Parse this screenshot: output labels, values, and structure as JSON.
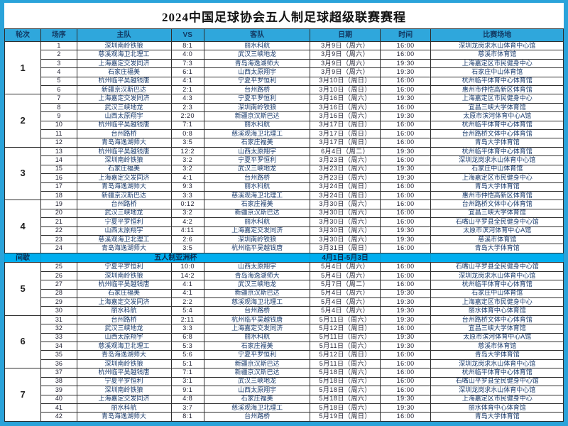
{
  "title": "2024中国足球协会五人制足球超级联赛赛程",
  "colors": {
    "frame": "#2aa3da",
    "header_bg": "#2fa7dc",
    "interlude_bg": "#00aeef",
    "grid": "#2e2e2e",
    "text": "#1e3a5f"
  },
  "table": {
    "headers": [
      "轮次",
      "场序",
      "主队",
      "VS",
      "客队",
      "日期",
      "时间",
      "比赛场地"
    ],
    "interlude": {
      "after_round": "4",
      "label": "间歇",
      "event": "五人制亚洲杯",
      "dates": "4月1日-5月3日"
    },
    "rounds": [
      {
        "round": "1",
        "matches": [
          {
            "no": "1",
            "home": "深圳南岭铁狼",
            "score": "8:1",
            "away": "丽水科航",
            "date": "3月9日（周六）",
            "time": "16:00",
            "venue": "深圳龙岗求水山体育中心馆"
          },
          {
            "no": "2",
            "home": "慈溪观海卫北理工",
            "score": "4:0",
            "away": "武汉三峡地龙",
            "date": "3月9日（周六）",
            "time": "16:00",
            "venue": "慈溪市体育馆"
          },
          {
            "no": "3",
            "home": "上海嘉定交发同济",
            "score": "7:3",
            "away": "青岛海逸湖师大",
            "date": "3月9日（周六）",
            "time": "19:30",
            "venue": "上海嘉定区市民健身中心"
          },
          {
            "no": "4",
            "home": "石家庄福美",
            "score": "6:1",
            "away": "山西太原翔宇",
            "date": "3月9日（周六）",
            "time": "19:30",
            "venue": "石家庄中山体育馆"
          },
          {
            "no": "5",
            "home": "杭州临平吴越钱唐",
            "score": "4:1",
            "away": "宁夏平罗恒利",
            "date": "3月10日（周日）",
            "time": "16:00",
            "venue": "杭州临平体育中心体育馆"
          },
          {
            "no": "6",
            "home": "新疆京汉斯巴达",
            "score": "2:1",
            "away": "台州路桥",
            "date": "3月10日（周日）",
            "time": "16:00",
            "venue": "惠州市仲恺高新区体育馆"
          }
        ]
      },
      {
        "round": "2",
        "matches": [
          {
            "no": "7",
            "home": "上海嘉定交发同济",
            "score": "4:3",
            "away": "宁夏平罗恒利",
            "date": "3月16日（周六）",
            "time": "19:30",
            "venue": "上海嘉定区市民健身中心"
          },
          {
            "no": "8",
            "home": "武汉三峡地龙",
            "score": "2:3",
            "away": "深圳南岭铁狼",
            "date": "3月16日（周六）",
            "time": "16:00",
            "venue": "宜昌三峡大学体育馆"
          },
          {
            "no": "9",
            "home": "山西太原翔宇",
            "score": "2:20",
            "away": "新疆京汉斯巴达",
            "date": "3月16日（周六）",
            "time": "19:30",
            "venue": "太原市滨河体育中心A馆"
          },
          {
            "no": "10",
            "home": "杭州临平吴越钱唐",
            "score": "7:1",
            "away": "丽水科航",
            "date": "3月17日（周日）",
            "time": "16:00",
            "venue": "杭州临平体育中心体育馆"
          },
          {
            "no": "11",
            "home": "台州路桥",
            "score": "0:8",
            "away": "慈溪观海卫北理工",
            "date": "3月17日（周日）",
            "time": "16:00",
            "venue": "台州路桥文体中心体育馆"
          },
          {
            "no": "12",
            "home": "青岛海逸湖师大",
            "score": "3:5",
            "away": "石家庄福美",
            "date": "3月17日（周日）",
            "time": "16:00",
            "venue": "青岛大学体育馆"
          }
        ]
      },
      {
        "round": "3",
        "matches": [
          {
            "no": "13",
            "home": "杭州临平吴越钱唐",
            "score": "12:2",
            "away": "山西太原翔宇",
            "date": "6月4日（周二）",
            "time": "19:30",
            "venue": "杭州临平体育中心体育馆"
          },
          {
            "no": "14",
            "home": "深圳南岭铁狼",
            "score": "3:2",
            "away": "宁夏平罗恒利",
            "date": "3月23日（周六）",
            "time": "16:00",
            "venue": "深圳龙岗求水山体育中心馆"
          },
          {
            "no": "15",
            "home": "石家庄福美",
            "score": "3:2",
            "away": "武汉三峡地龙",
            "date": "3月23日（周六）",
            "time": "19:30",
            "venue": "石家庄中山体育馆"
          },
          {
            "no": "16",
            "home": "上海嘉定交发同济",
            "score": "4:1",
            "away": "台州路桥",
            "date": "3月23日（周六）",
            "time": "19:30",
            "venue": "上海嘉定区市民健身中心"
          },
          {
            "no": "17",
            "home": "青岛海逸湖师大",
            "score": "9:3",
            "away": "丽水科航",
            "date": "3月24日（周日）",
            "time": "16:00",
            "venue": "青岛大学体育馆"
          },
          {
            "no": "18",
            "home": "新疆京汉斯巴达",
            "score": "3:3",
            "away": "慈溪观海卫北理工",
            "date": "3月24日（周日）",
            "time": "16:00",
            "venue": "惠州市仲恺高新区体育馆"
          }
        ]
      },
      {
        "round": "4",
        "matches": [
          {
            "no": "19",
            "home": "台州路桥",
            "score": "0:12",
            "away": "石家庄福美",
            "date": "3月30日（周六）",
            "time": "16:00",
            "venue": "台州路桥文体中心体育馆"
          },
          {
            "no": "20",
            "home": "武汉三峡地龙",
            "score": "3:2",
            "away": "新疆京汉斯巴达",
            "date": "3月30日（周六）",
            "time": "16:00",
            "venue": "宜昌三峡大学体育馆"
          },
          {
            "no": "21",
            "home": "宁夏平罗恒利",
            "score": "4:2",
            "away": "丽水科航",
            "date": "3月30日（周六）",
            "time": "16:00",
            "venue": "石嘴山平罗县全民健身中心馆"
          },
          {
            "no": "22",
            "home": "山西太原翔宇",
            "score": "4:11",
            "away": "上海嘉定交发同济",
            "date": "3月30日（周六）",
            "time": "19:30",
            "venue": "太原市滨河体育中心A馆"
          },
          {
            "no": "23",
            "home": "慈溪观海卫北理工",
            "score": "2:6",
            "away": "深圳南岭铁狼",
            "date": "3月30日（周六）",
            "time": "19:30",
            "venue": "慈溪市体育馆"
          },
          {
            "no": "24",
            "home": "青岛海逸湖师大",
            "score": "3:5",
            "away": "杭州临平吴越钱唐",
            "date": "3月31日（周日）",
            "time": "16:00",
            "venue": "青岛大学体育馆"
          }
        ]
      },
      {
        "round": "5",
        "matches": [
          {
            "no": "25",
            "home": "宁夏平罗恒利",
            "score": "10:0",
            "away": "山西太原翔宇",
            "date": "5月4日（周六）",
            "time": "16:00",
            "venue": "石嘴山平罗县全民健身中心馆"
          },
          {
            "no": "26",
            "home": "深圳南岭铁狼",
            "score": "14:2",
            "away": "青岛海逸湖师大",
            "date": "5月4日（周六）",
            "time": "16:00",
            "venue": "深圳龙岗求水山体育中心馆"
          },
          {
            "no": "27",
            "home": "杭州临平吴越钱唐",
            "score": "4:1",
            "away": "武汉三峡地龙",
            "date": "5月7日（周二）",
            "time": "16:00",
            "venue": "杭州临平体育中心体育馆"
          },
          {
            "no": "28",
            "home": "石家庄福美",
            "score": "4:1",
            "away": "新疆京汉斯巴达",
            "date": "5月4日（周六）",
            "time": "19:30",
            "venue": "石家庄中山体育馆"
          },
          {
            "no": "29",
            "home": "上海嘉定交发同济",
            "score": "2:2",
            "away": "慈溪观海卫北理工",
            "date": "5月4日（周六）",
            "time": "19:30",
            "venue": "上海嘉定区市民健身中心"
          },
          {
            "no": "30",
            "home": "丽水科航",
            "score": "5:4",
            "away": "台州路桥",
            "date": "5月4日（周六）",
            "time": "19:30",
            "venue": "丽水体育中心体育馆"
          }
        ]
      },
      {
        "round": "6",
        "matches": [
          {
            "no": "31",
            "home": "台州路桥",
            "score": "2:11",
            "away": "杭州临平吴越钱唐",
            "date": "5月11日（周六）",
            "time": "19:30",
            "venue": "台州路桥文体中心体育馆"
          },
          {
            "no": "32",
            "home": "武汉三峡地龙",
            "score": "3:3",
            "away": "上海嘉定交发同济",
            "date": "5月12日（周日）",
            "time": "16:00",
            "venue": "宜昌三峡大学体育馆"
          },
          {
            "no": "33",
            "home": "山西太原翔宇",
            "score": "6:8",
            "away": "丽水科航",
            "date": "5月11日（周六）",
            "time": "19:30",
            "venue": "太原市滨河体育中心A馆"
          },
          {
            "no": "34",
            "home": "慈溪观海卫北理工",
            "score": "5:3",
            "away": "石家庄福美",
            "date": "5月11日（周六）",
            "time": "19:30",
            "venue": "慈溪市体育馆"
          },
          {
            "no": "35",
            "home": "青岛海逸湖师大",
            "score": "5:6",
            "away": "宁夏平罗恒利",
            "date": "5月12日（周日）",
            "time": "16:00",
            "venue": "青岛大学体育馆"
          },
          {
            "no": "36",
            "home": "深圳南岭铁狼",
            "score": "5:1",
            "away": "新疆京汉斯巴达",
            "date": "5月11日（周六）",
            "time": "16:00",
            "venue": "深圳龙岗求水山体育中心馆"
          }
        ]
      },
      {
        "round": "7",
        "matches": [
          {
            "no": "37",
            "home": "杭州临平吴越钱唐",
            "score": "7:1",
            "away": "新疆京汉斯巴达",
            "date": "5月18日（周六）",
            "time": "16:00",
            "venue": "杭州临平体育中心体育馆"
          },
          {
            "no": "38",
            "home": "宁夏平罗恒利",
            "score": "3:1",
            "away": "武汉三峡地龙",
            "date": "5月18日（周六）",
            "time": "16:00",
            "venue": "石嘴山平罗县全民健身中心馆"
          },
          {
            "no": "39",
            "home": "深圳南岭铁狼",
            "score": "9:1",
            "away": "山西太原翔宇",
            "date": "5月18日（周六）",
            "time": "16:00",
            "venue": "深圳龙岗求水山体育中心馆"
          },
          {
            "no": "40",
            "home": "上海嘉定交发同济",
            "score": "4:8",
            "away": "石家庄福美",
            "date": "5月18日（周六）",
            "time": "19:30",
            "venue": "上海嘉定区市民健身中心"
          },
          {
            "no": "41",
            "home": "丽水科航",
            "score": "3:7",
            "away": "慈溪观海卫北理工",
            "date": "5月18日（周六）",
            "time": "19:30",
            "venue": "丽水体育中心体育馆"
          },
          {
            "no": "42",
            "home": "青岛海逸湖师大",
            "score": "8:1",
            "away": "台州路桥",
            "date": "5月19日（周日）",
            "time": "16:00",
            "venue": "青岛大学体育馆"
          }
        ]
      }
    ]
  }
}
